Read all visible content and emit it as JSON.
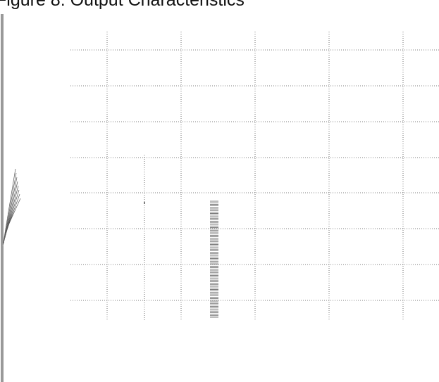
{
  "figure": {
    "title": "Figure 8: Output Characteristics"
  }
}
